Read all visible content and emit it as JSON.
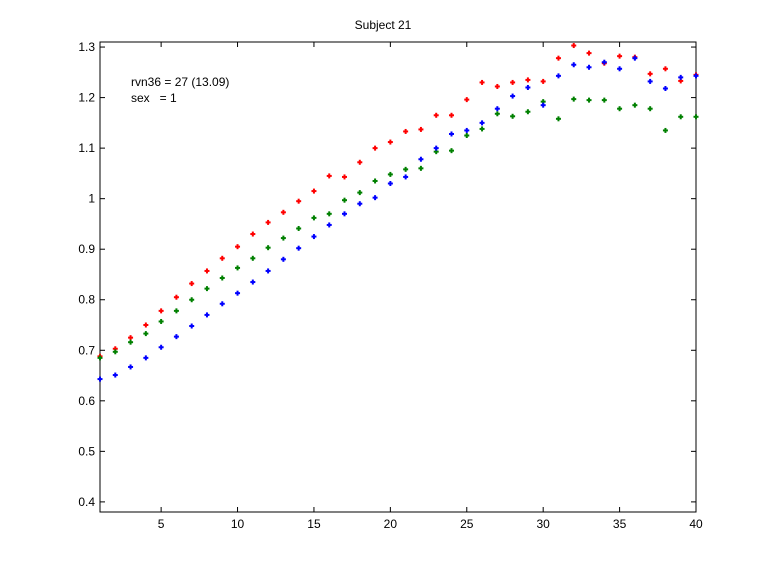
{
  "chart_data": {
    "type": "scatter",
    "title": "Subject 21",
    "xlabel": "",
    "ylabel": "",
    "xlim": [
      1,
      40
    ],
    "ylim": [
      0.38,
      1.31
    ],
    "grid": false,
    "legend": "none",
    "xticks": [
      5,
      10,
      15,
      20,
      25,
      30,
      35,
      40
    ],
    "yticks": [
      0.4,
      0.5,
      0.6,
      0.7,
      0.8,
      0.9,
      1,
      1.1,
      1.2,
      1.3
    ],
    "xtick_labels": [
      "5",
      "10",
      "15",
      "20",
      "25",
      "30",
      "35",
      "40"
    ],
    "ytick_labels": [
      "0.4",
      "0.5",
      "0.6",
      "0.7",
      "0.8",
      "0.9",
      "1",
      "1.1",
      "1.2",
      "1.3"
    ],
    "annotations": [
      "rvn36 = 27 (13.09)",
      "sex   = 1"
    ],
    "x": [
      1,
      2,
      3,
      4,
      5,
      6,
      7,
      8,
      9,
      10,
      11,
      12,
      13,
      14,
      15,
      16,
      17,
      18,
      19,
      20,
      21,
      22,
      23,
      24,
      25,
      26,
      27,
      28,
      29,
      30,
      31,
      32,
      33,
      34,
      35,
      36,
      37,
      38,
      39,
      40
    ],
    "series": [
      {
        "name": "red",
        "color": "#ff0000",
        "marker": "+",
        "values": [
          0.688,
          0.703,
          0.725,
          0.75,
          0.778,
          0.805,
          0.832,
          0.857,
          0.882,
          0.905,
          0.93,
          0.953,
          0.973,
          0.995,
          1.015,
          1.045,
          1.043,
          1.072,
          1.1,
          1.112,
          1.133,
          1.137,
          1.165,
          1.165,
          1.196,
          1.23,
          1.222,
          1.23,
          1.235,
          1.232,
          1.278,
          1.303,
          1.288,
          1.268,
          1.282,
          1.28,
          1.247,
          1.257,
          1.233,
          1.245
        ]
      },
      {
        "name": "green",
        "color": "#008000",
        "marker": "+",
        "values": [
          0.685,
          0.697,
          0.716,
          0.733,
          0.757,
          0.778,
          0.8,
          0.822,
          0.843,
          0.863,
          0.882,
          0.903,
          0.922,
          0.941,
          0.962,
          0.97,
          0.997,
          1.012,
          1.035,
          1.048,
          1.058,
          1.06,
          1.093,
          1.095,
          1.125,
          1.138,
          1.168,
          1.163,
          1.172,
          1.192,
          1.158,
          1.197,
          1.195,
          1.195,
          1.178,
          1.185,
          1.178,
          1.135,
          1.162,
          1.162
        ]
      },
      {
        "name": "blue",
        "color": "#0000ff",
        "marker": "+",
        "values": [
          0.643,
          0.651,
          0.667,
          0.685,
          0.706,
          0.727,
          0.748,
          0.77,
          0.792,
          0.813,
          0.835,
          0.857,
          0.88,
          0.902,
          0.925,
          0.948,
          0.97,
          0.99,
          1.002,
          1.03,
          1.043,
          1.078,
          1.1,
          1.128,
          1.135,
          1.15,
          1.178,
          1.203,
          1.22,
          1.185,
          1.243,
          1.265,
          1.26,
          1.27,
          1.257,
          1.278,
          1.232,
          1.218,
          1.24,
          1.243
        ]
      }
    ]
  }
}
